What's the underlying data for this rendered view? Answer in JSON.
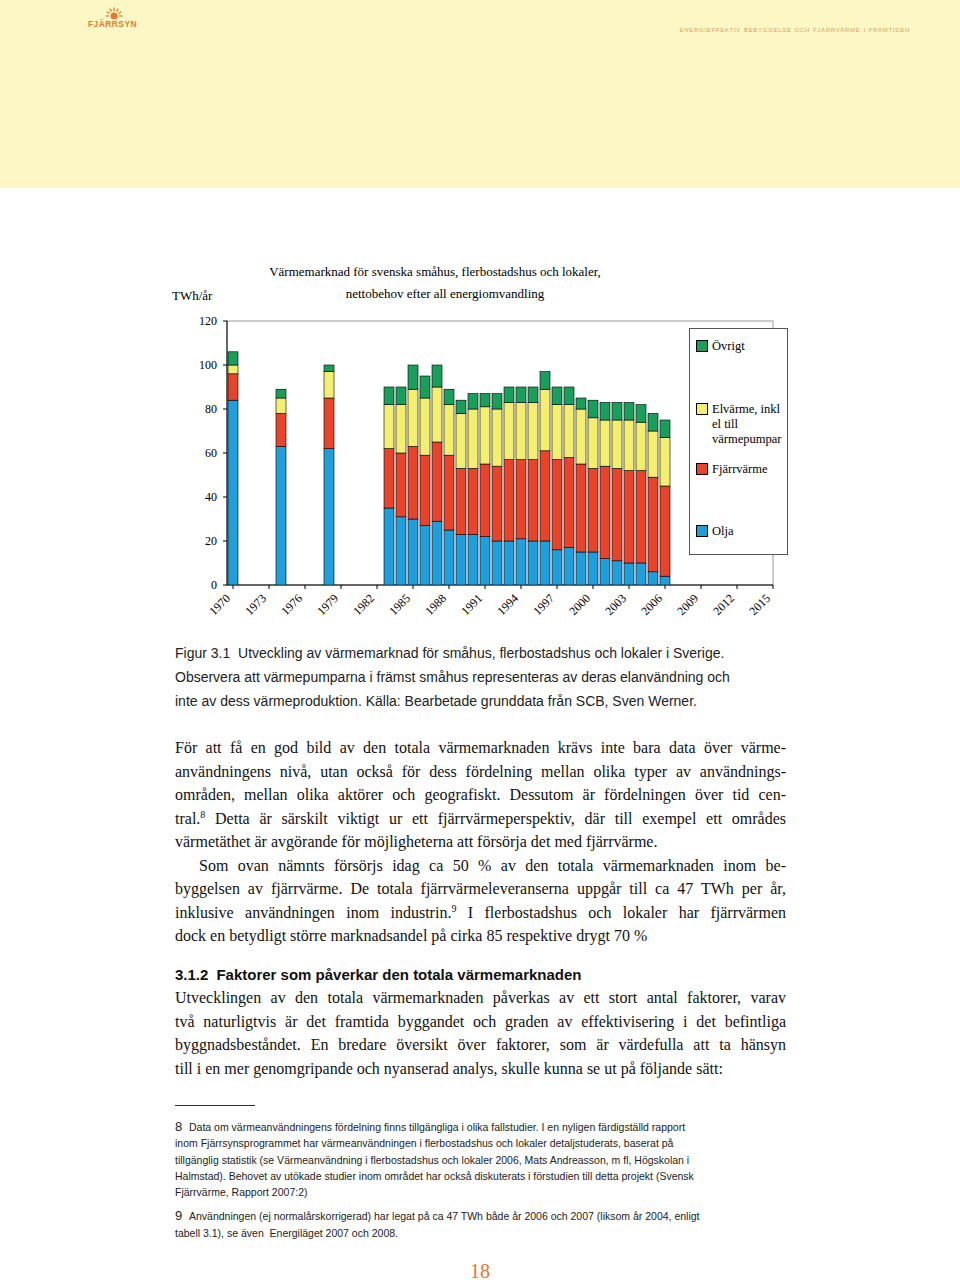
{
  "header": {
    "logo": "FJÄRRSYN",
    "tagline": "energieffektiv bebyggelse och fjärrvärme i framtiden"
  },
  "chart_data": {
    "type": "bar",
    "stacked": true,
    "title": "Värmemarknad för svenska småhus, flerbostadshus och lokaler,",
    "subtitle": "nettobehov efter all energiomvandling",
    "y_label": "TWh/år",
    "x": [
      1970,
      1974,
      1978,
      1983,
      1984,
      1985,
      1986,
      1987,
      1988,
      1989,
      1990,
      1991,
      1992,
      1993,
      1994,
      1995,
      1996,
      1997,
      1998,
      1999,
      2000,
      2001,
      2002,
      2003,
      2004,
      2005,
      2006
    ],
    "xlim": [
      1969.5,
      2015
    ],
    "xticks": [
      1970,
      1973,
      1976,
      1979,
      1982,
      1985,
      1988,
      1991,
      1994,
      1997,
      2000,
      2003,
      2006,
      2009,
      2012,
      2015
    ],
    "ylim": [
      0,
      120
    ],
    "yticks": [
      0,
      20,
      40,
      60,
      80,
      100,
      120
    ],
    "grid": false,
    "legend": "right",
    "series": [
      {
        "name": "Olja",
        "color": "#1f9fdc",
        "values": [
          84,
          63,
          62,
          35,
          31,
          30,
          27,
          29,
          25,
          23,
          23,
          22,
          20,
          20,
          21,
          20,
          20,
          16,
          17,
          15,
          15,
          12,
          11,
          10,
          10,
          6,
          4
        ]
      },
      {
        "name": "Fjärrvärme",
        "color": "#e8432b",
        "values": [
          12,
          15,
          23,
          27,
          29,
          33,
          32,
          36,
          34,
          30,
          30,
          33,
          34,
          37,
          36,
          37,
          41,
          41,
          41,
          40,
          38,
          42,
          42,
          42,
          42,
          43,
          41
        ]
      },
      {
        "name": "Elvärme, inkl el till värmepumpar",
        "color": "#f3ee6d",
        "values": [
          4,
          7,
          12,
          20,
          22,
          26,
          26,
          25,
          23,
          25,
          27,
          26,
          26,
          26,
          26,
          26,
          28,
          25,
          24,
          25,
          23,
          21,
          22,
          23,
          22,
          21,
          22
        ]
      },
      {
        "name": "Övrigt",
        "color": "#1a9e5c",
        "values": [
          6,
          4,
          3,
          8,
          8,
          11,
          10,
          10,
          7,
          6,
          7,
          6,
          7,
          7,
          7,
          7,
          8,
          8,
          8,
          5,
          8,
          8,
          8,
          8,
          8,
          8,
          8
        ]
      }
    ]
  },
  "caption": {
    "lines": [
      "Figur 3.1  Utveckling av värmemarknad för småhus, flerbostadshus och lokaler i Sverige.",
      "Observera att värmepumparna i främst småhus representeras av deras elanvändning och",
      "inte av dess värmeproduktion. Källa: Bearbetade grunddata från SCB, Sven Werner."
    ]
  },
  "body": [
    {
      "kind": "paragraph",
      "lines": [
        "För att få en god bild av den totala värmemarknaden krävs inte bara data över värme-",
        "användningens nivå, utan också för dess fördelning mellan olika typer av användnings-",
        "områden, mellan olika aktörer och geografiskt. Dessutom är fördelningen över tid cen-",
        [
          {
            "text": "tral."
          },
          {
            "sup": "8"
          },
          {
            "text": " Detta är särskilt viktigt ur ett fjärrvärmeperspektiv, där till exempel ett områdes"
          }
        ],
        "värmetäthet är avgörande för möjligheterna att försörja det med fjärrvärme."
      ]
    },
    {
      "kind": "paragraph",
      "lines": [
        "Som ovan nämnts försörjs idag ca 50 % av den totala värmemarknaden inom be-",
        "byggelsen av fjärrvärme. De totala fjärrvärmeleveranserna uppgår till ca 47 TWh per år,",
        [
          {
            "text": "inklusive användningen inom industrin."
          },
          {
            "sup": "9"
          },
          {
            "text": " I flerbostadshus och lokaler har fjärrvärmen"
          }
        ],
        "dock en betydligt större marknadsandel på cirka 85 respektive drygt 70 %"
      ]
    },
    {
      "kind": "heading",
      "number": "3.1.2",
      "text": "Faktorer som påverkar den totala värmemarknaden"
    },
    {
      "kind": "paragraph",
      "lines": [
        "Utvecklingen av den totala värmemarknaden påverkas av ett stort antal faktorer, varav",
        "två naturligtvis är det framtida byggandet och graden av effektivisering i det befintliga",
        "byggnadsbeståndet. En bredare översikt över faktorer, som är värdefulla att ta hänsyn",
        "till i en mer genomgripande och nyanserad analys, skulle kunna se ut på följande sätt:"
      ]
    }
  ],
  "footnotes": [
    {
      "number": "8",
      "lines": [
        "Data om värmeanvändningens fördelning finns tillgängliga i olika fallstudier. I en nyligen färdigställd rapport",
        "inom Fjärrsynsprogrammet har värmeanvändningen i flerbostadshus och lokaler detaljstuderats, baserat på",
        "tillgänglig statistik (se Värmeanvändning i flerbostadshus och lokaler 2006, Mats Andreasson, m fl, Högskolan i",
        "Halmstad). Behovet av utökade studier inom området har också diskuterats i förstudien till detta projekt (Svensk",
        "Fjärrvärme, Rapport 2007:2)"
      ]
    },
    {
      "number": "9",
      "lines": [
        "Användningen (ej normalårskorrigerad) har legat på ca 47 TWh både år 2006 och 2007 (liksom år 2004, enligt",
        "tabell 3.1), se även  Energiläget 2007 och 2008."
      ]
    }
  ],
  "page_number": "18"
}
